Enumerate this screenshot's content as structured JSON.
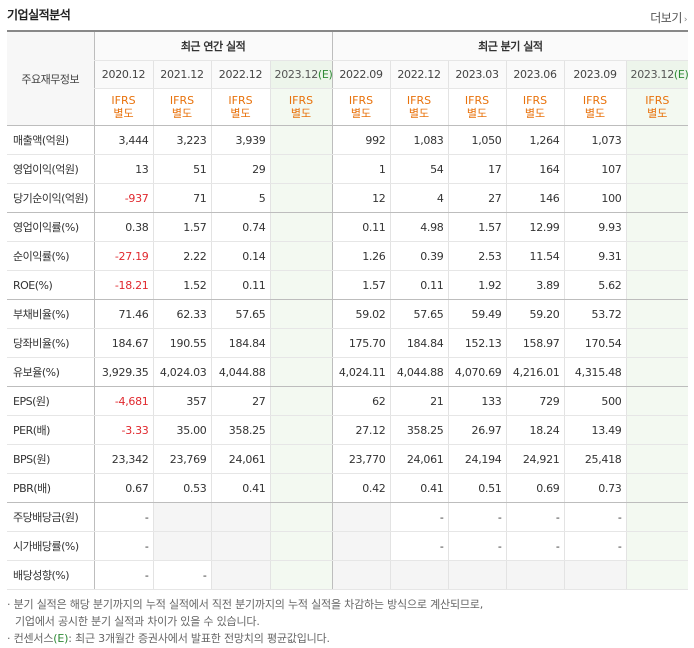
{
  "section_title": "기업실적분석",
  "more_link": "더보기",
  "headers": {
    "side": "주요재무정보",
    "annual_group": "최근 연간 실적",
    "quarterly_group": "최근 분기 실적",
    "annual_periods": [
      "2020.12",
      "2021.12",
      "2022.12",
      "2023.12"
    ],
    "annual_est_suffix": "(E)",
    "quarterly_periods": [
      "2022.09",
      "2022.12",
      "2023.03",
      "2023.06",
      "2023.09",
      "2023.12"
    ],
    "quarterly_est_suffix": "(E)",
    "ifrs_line1": "IFRS",
    "ifrs_line2": "별도"
  },
  "rows": [
    {
      "label": "매출액(억원)",
      "values": [
        "3,444",
        "3,223",
        "3,939",
        "",
        "992",
        "1,083",
        "1,050",
        "1,264",
        "1,073",
        ""
      ]
    },
    {
      "label": "영업이익(억원)",
      "values": [
        "13",
        "51",
        "29",
        "",
        "1",
        "54",
        "17",
        "164",
        "107",
        ""
      ]
    },
    {
      "label": "당기순이익(억원)",
      "values": [
        "-937",
        "71",
        "5",
        "",
        "12",
        "4",
        "27",
        "146",
        "100",
        ""
      ]
    },
    {
      "label": "영업이익률(%)",
      "values": [
        "0.38",
        "1.57",
        "0.74",
        "",
        "0.11",
        "4.98",
        "1.57",
        "12.99",
        "9.93",
        ""
      ]
    },
    {
      "label": "순이익률(%)",
      "values": [
        "-27.19",
        "2.22",
        "0.14",
        "",
        "1.26",
        "0.39",
        "2.53",
        "11.54",
        "9.31",
        ""
      ]
    },
    {
      "label": "ROE(%)",
      "values": [
        "-18.21",
        "1.52",
        "0.11",
        "",
        "1.57",
        "0.11",
        "1.92",
        "3.89",
        "5.62",
        ""
      ]
    },
    {
      "label": "부채비율(%)",
      "values": [
        "71.46",
        "62.33",
        "57.65",
        "",
        "59.02",
        "57.65",
        "59.49",
        "59.20",
        "53.72",
        ""
      ]
    },
    {
      "label": "당좌비율(%)",
      "values": [
        "184.67",
        "190.55",
        "184.84",
        "",
        "175.70",
        "184.84",
        "152.13",
        "158.97",
        "170.54",
        ""
      ]
    },
    {
      "label": "유보율(%)",
      "values": [
        "3,929.35",
        "4,024.03",
        "4,044.88",
        "",
        "4,024.11",
        "4,044.88",
        "4,070.69",
        "4,216.01",
        "4,315.48",
        ""
      ]
    },
    {
      "label": "EPS(원)",
      "values": [
        "-4,681",
        "357",
        "27",
        "",
        "62",
        "21",
        "133",
        "729",
        "500",
        ""
      ]
    },
    {
      "label": "PER(배)",
      "values": [
        "-3.33",
        "35.00",
        "358.25",
        "",
        "27.12",
        "358.25",
        "26.97",
        "18.24",
        "13.49",
        ""
      ]
    },
    {
      "label": "BPS(원)",
      "values": [
        "23,342",
        "23,769",
        "24,061",
        "",
        "23,770",
        "24,061",
        "24,194",
        "24,921",
        "25,418",
        ""
      ]
    },
    {
      "label": "PBR(배)",
      "values": [
        "0.67",
        "0.53",
        "0.41",
        "",
        "0.42",
        "0.41",
        "0.51",
        "0.69",
        "0.73",
        ""
      ]
    },
    {
      "label": "주당배당금(원)",
      "values": [
        "-",
        "",
        "",
        "",
        "",
        "-",
        "-",
        "-",
        "-",
        ""
      ]
    },
    {
      "label": "시가배당률(%)",
      "values": [
        "-",
        "",
        "",
        "",
        "",
        "-",
        "-",
        "-",
        "-",
        ""
      ]
    },
    {
      "label": "배당성향(%)",
      "values": [
        "-",
        "-",
        "",
        "",
        "",
        "",
        "",
        "",
        "",
        ""
      ]
    }
  ],
  "notes": {
    "line1": "· 분기 실적은 해당 분기까지의 누적 실적에서 직전 분기까지의 누적 실적을 차감하는 방식으로 계산되므로,",
    "line2": "기업에서 공시한 분기 실적과 차이가 있을 수 있습니다.",
    "line3_prefix": "· 컨센서스",
    "line3_tag": "(E)",
    "line3_suffix": ": 최근 3개월간 증권사에서 발표한 전망치의 평균값입니다."
  },
  "colors": {
    "negative": "#e0282e",
    "ifrs": "#e8720c",
    "estimate": "#2f8a36",
    "estimate_bg": "#f3f9f1"
  }
}
